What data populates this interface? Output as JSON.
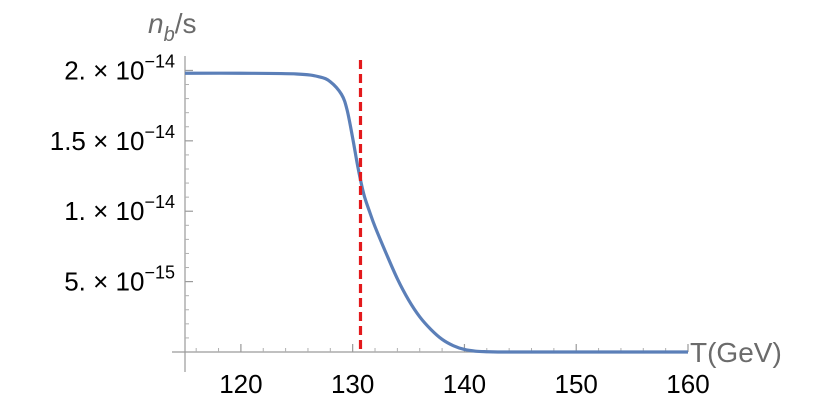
{
  "chart_data": {
    "type": "line",
    "xlabel": "T(GeV)",
    "ylabel_main": "n",
    "ylabel_sub": "b",
    "ylabel_tail": "/s",
    "xlim": [
      115,
      160
    ],
    "ylim": [
      0,
      2.06e-14
    ],
    "x_ticks": [
      {
        "value": 120,
        "label": "120"
      },
      {
        "value": 130,
        "label": "130"
      },
      {
        "value": 140,
        "label": "140"
      },
      {
        "value": 150,
        "label": "150"
      },
      {
        "value": 160,
        "label": "160"
      }
    ],
    "y_ticks": [
      {
        "value": 5e-15,
        "mantissa": "5.",
        "times": "×",
        "base": "10",
        "exp": "−15"
      },
      {
        "value": 1e-14,
        "mantissa": "1.",
        "times": "×",
        "base": "10",
        "exp": "−14"
      },
      {
        "value": 1.5e-14,
        "mantissa": "1.5",
        "times": "×",
        "base": "10",
        "exp": "−14"
      },
      {
        "value": 2e-14,
        "mantissa": "2.",
        "times": "×",
        "base": "10",
        "exp": "−14"
      }
    ],
    "series": [
      {
        "color": "#5b7fb8",
        "x": [
          115,
          120,
          125,
          127,
          128,
          129,
          129.5,
          130,
          130.5,
          131,
          131.5,
          132,
          133,
          134,
          135,
          136,
          137,
          138,
          139,
          140,
          141,
          142,
          143,
          145,
          150,
          155,
          160
        ],
        "y": [
          1.98e-14,
          1.98e-14,
          1.975e-14,
          1.955e-14,
          1.92e-14,
          1.83e-14,
          1.72e-14,
          1.52e-14,
          1.3e-14,
          1.12e-14,
          1e-14,
          8.9e-15,
          7e-15,
          5.2e-15,
          3.7e-15,
          2.5e-15,
          1.6e-15,
          9e-16,
          4.5e-16,
          1.8e-16,
          6e-17,
          2e-17,
          0,
          0,
          0,
          0,
          0
        ]
      }
    ],
    "marker_line": {
      "x": 130.7,
      "color": "#e3191c",
      "style": "dashed"
    }
  }
}
